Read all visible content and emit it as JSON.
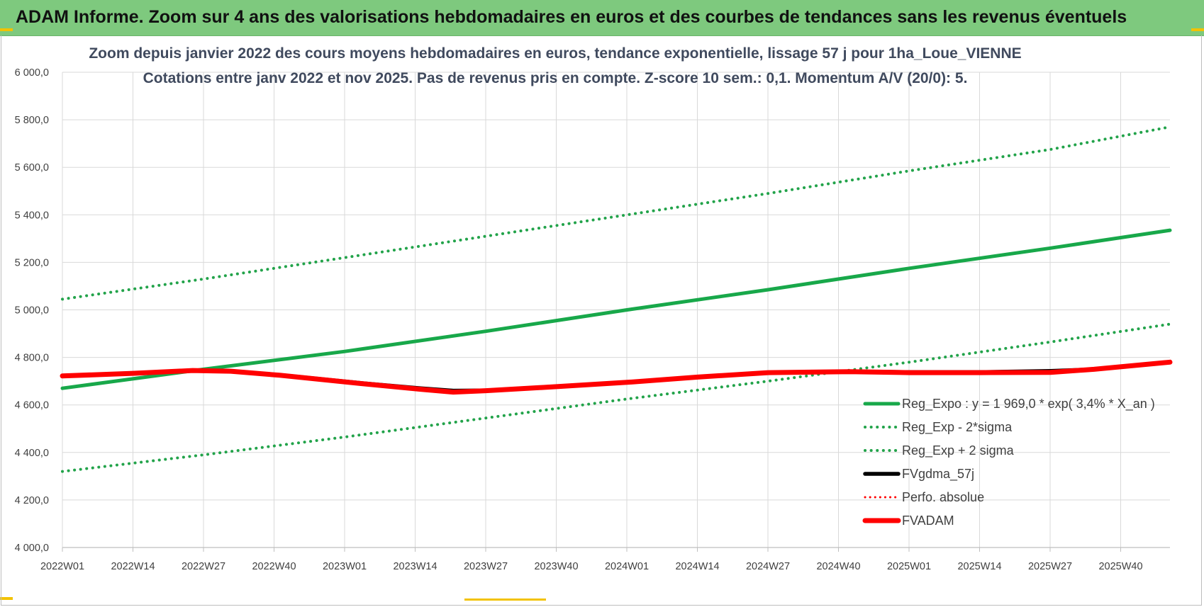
{
  "banner": {
    "title": "ADAM Informe. Zoom sur 4 ans des valorisations hebdomadaires en euros et des courbes de tendances sans les revenus éventuels"
  },
  "colors": {
    "banner_bg": "#7ec97e",
    "trend_green": "#18a84a",
    "band_green": "#22a34a",
    "fvgdma_black": "#000000",
    "fvadam_red": "#ff0000",
    "grid": "#d9d9d9"
  },
  "chart_data": {
    "type": "line",
    "title_line1": "Zoom depuis janvier 2022 des cours moyens hebdomadaires en euros, tendance exponentielle, lissage 57 j pour 1ha_Loue_VIENNE",
    "title_line2": "Cotations entre janv 2022 et nov 2025. Pas de revenus pris en compte. Z-score 10 sem.: 0,1. Momentum A/V (20/0): 5.",
    "ylim": [
      4000,
      6000
    ],
    "y_ticks": [
      "4 000,0",
      "4 200,0",
      "4 400,0",
      "4 600,0",
      "4 800,0",
      "5 000,0",
      "5 200,0",
      "5 400,0",
      "5 600,0",
      "5 800,0",
      "6 000,0"
    ],
    "x_ticks": [
      "2022W01",
      "2022W14",
      "2022W27",
      "2022W40",
      "2023W01",
      "2023W14",
      "2023W27",
      "2023W40",
      "2024W01",
      "2024W14",
      "2024W27",
      "2024W40",
      "2025W01",
      "2025W14",
      "2025W27",
      "2025W40"
    ],
    "x_range_weeks": [
      0,
      204
    ],
    "grid": true,
    "legend_position": "bottom-right",
    "series": [
      {
        "name": "Reg_Expo : y = 1 969,0 * exp( 3,4% *  X_an )",
        "style": "solid",
        "color": "#18a84a",
        "x": [
          0,
          26,
          52,
          78,
          104,
          130,
          156,
          182,
          204
        ],
        "y": [
          4670,
          4750,
          4825,
          4910,
          5000,
          5085,
          5175,
          5260,
          5335
        ]
      },
      {
        "name": "Reg_Exp - 2*sigma",
        "style": "dotted",
        "color": "#22a34a",
        "x": [
          0,
          26,
          52,
          78,
          104,
          130,
          156,
          182,
          204
        ],
        "y": [
          4320,
          4390,
          4465,
          4545,
          4625,
          4700,
          4780,
          4865,
          4940
        ]
      },
      {
        "name": "Reg_Exp + 2 sigma",
        "style": "dotted",
        "color": "#22a34a",
        "x": [
          0,
          26,
          52,
          78,
          104,
          130,
          156,
          182,
          204
        ],
        "y": [
          5045,
          5130,
          5220,
          5310,
          5400,
          5490,
          5585,
          5675,
          5770
        ]
      },
      {
        "name": "FVgdma_57j",
        "style": "solid",
        "color": "#000000",
        "x": [
          0,
          13,
          24,
          31,
          40,
          55,
          66,
          72,
          78,
          91,
          104,
          117,
          130,
          145,
          156,
          169,
          182,
          190,
          204
        ],
        "y": [
          4722,
          4733,
          4744,
          4743,
          4726,
          4692,
          4670,
          4660,
          4661,
          4678,
          4696,
          4718,
          4736,
          4741,
          4738,
          4738,
          4743,
          4750,
          4780
        ]
      },
      {
        "name": "Perfo. absolue",
        "style": "dotted",
        "color": "#ff0000",
        "x": [
          0,
          13,
          24,
          31,
          40,
          55,
          66,
          72,
          78,
          91,
          104,
          117,
          130,
          145,
          156,
          169,
          182,
          190,
          204
        ],
        "y": [
          4722,
          4733,
          4745,
          4742,
          4725,
          4690,
          4666,
          4654,
          4660,
          4677,
          4695,
          4717,
          4736,
          4740,
          4736,
          4736,
          4737,
          4750,
          4780
        ]
      },
      {
        "name": "FVADAM",
        "style": "solid",
        "color": "#ff0000",
        "x": [
          0,
          13,
          24,
          31,
          40,
          55,
          66,
          72,
          78,
          91,
          104,
          117,
          130,
          145,
          156,
          169,
          182,
          190,
          204
        ],
        "y": [
          4722,
          4733,
          4745,
          4742,
          4725,
          4690,
          4666,
          4654,
          4660,
          4677,
          4695,
          4717,
          4736,
          4740,
          4736,
          4736,
          4737,
          4750,
          4780
        ]
      }
    ]
  }
}
